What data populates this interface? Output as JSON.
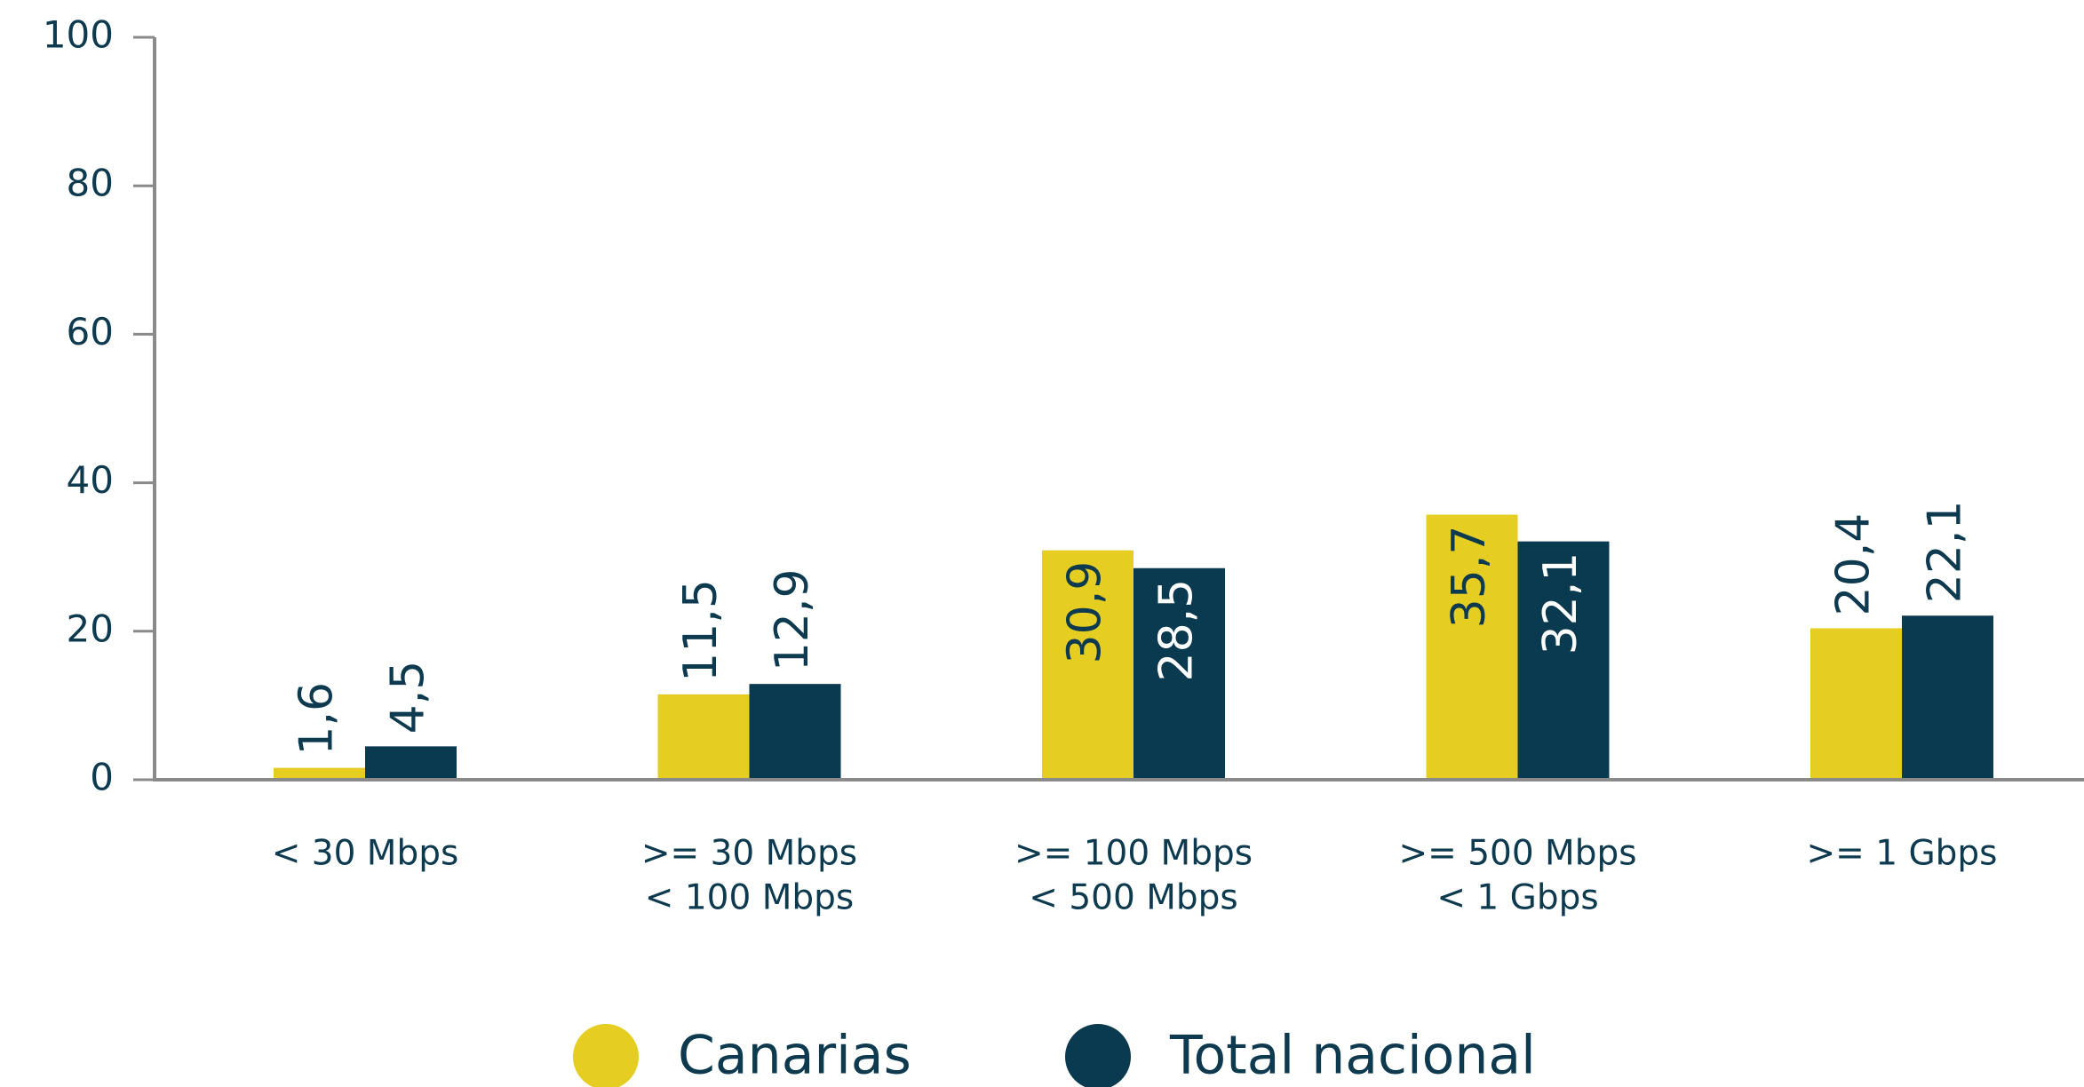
{
  "chart_data": {
    "type": "bar",
    "categories": [
      [
        "< 30 Mbps"
      ],
      [
        ">= 30 Mbps",
        "< 100 Mbps"
      ],
      [
        ">= 100 Mbps",
        "< 500 Mbps"
      ],
      [
        ">= 500 Mbps",
        "< 1 Gbps"
      ],
      [
        ">= 1 Gbps"
      ]
    ],
    "series": [
      {
        "name": "Canarias",
        "color": "#e5cd22",
        "values": [
          1.6,
          11.5,
          30.9,
          35.7,
          20.4
        ],
        "value_labels": [
          "1,6",
          "11,5",
          "30,9",
          "35,7",
          "20,4"
        ]
      },
      {
        "name": "Total nacional",
        "color": "#0a3a4f",
        "values": [
          4.5,
          12.9,
          28.5,
          32.1,
          22.1
        ],
        "value_labels": [
          "4,5",
          "12,9",
          "28,5",
          "32,1",
          "22,1"
        ]
      }
    ],
    "ylim": [
      0,
      100
    ],
    "yticks": [
      0,
      20,
      40,
      60,
      80,
      100
    ],
    "grid": false,
    "legend": "bottom"
  }
}
